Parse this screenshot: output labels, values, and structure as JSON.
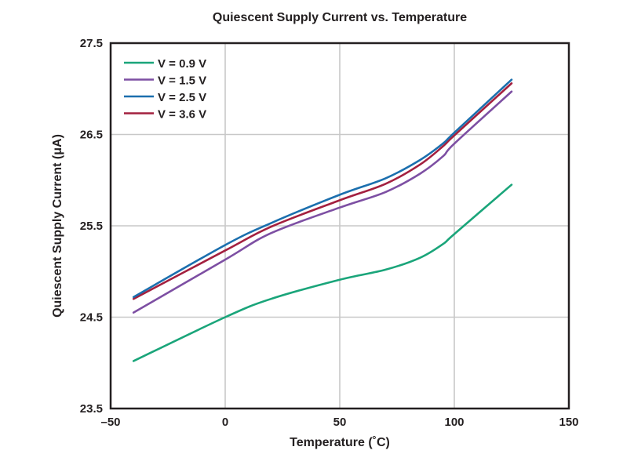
{
  "chart_data": {
    "type": "line",
    "title": "Quiescent Supply Current vs. Temperature",
    "xlabel": "Temperature (˚C)",
    "ylabel": "Quiescent Supply Current (μA)",
    "xlim": [
      -50,
      150
    ],
    "ylim": [
      23.5,
      27.5
    ],
    "xticks": [
      -50,
      0,
      50,
      100,
      150
    ],
    "xtick_labels": [
      "–50",
      "0",
      "50",
      "100",
      "150"
    ],
    "yticks": [
      23.5,
      24.5,
      25.5,
      26.5,
      27.5
    ],
    "ytick_labels": [
      "23.5",
      "24.5",
      "25.5",
      "26.5",
      "27.5"
    ],
    "grid": true,
    "legend_position": "top-left",
    "x": [
      -40,
      0,
      20,
      50,
      70,
      85,
      95,
      100,
      125
    ],
    "series": [
      {
        "name": "V = 0.9 V",
        "color": "#1aa57a",
        "values": [
          24.02,
          24.5,
          24.7,
          24.91,
          25.02,
          25.15,
          25.3,
          25.41,
          25.95
        ]
      },
      {
        "name": "V = 1.5 V",
        "color": "#7d4fa3",
        "values": [
          24.55,
          25.13,
          25.42,
          25.7,
          25.87,
          26.07,
          26.26,
          26.4,
          26.97
        ]
      },
      {
        "name": "V = 2.5 V",
        "color": "#1b6fae",
        "values": [
          24.72,
          25.29,
          25.53,
          25.84,
          26.02,
          26.22,
          26.4,
          26.52,
          27.1
        ]
      },
      {
        "name": "V = 3.6 V",
        "color": "#a3203f",
        "values": [
          24.7,
          25.23,
          25.49,
          25.78,
          25.96,
          26.17,
          26.37,
          26.49,
          27.06
        ]
      }
    ]
  }
}
